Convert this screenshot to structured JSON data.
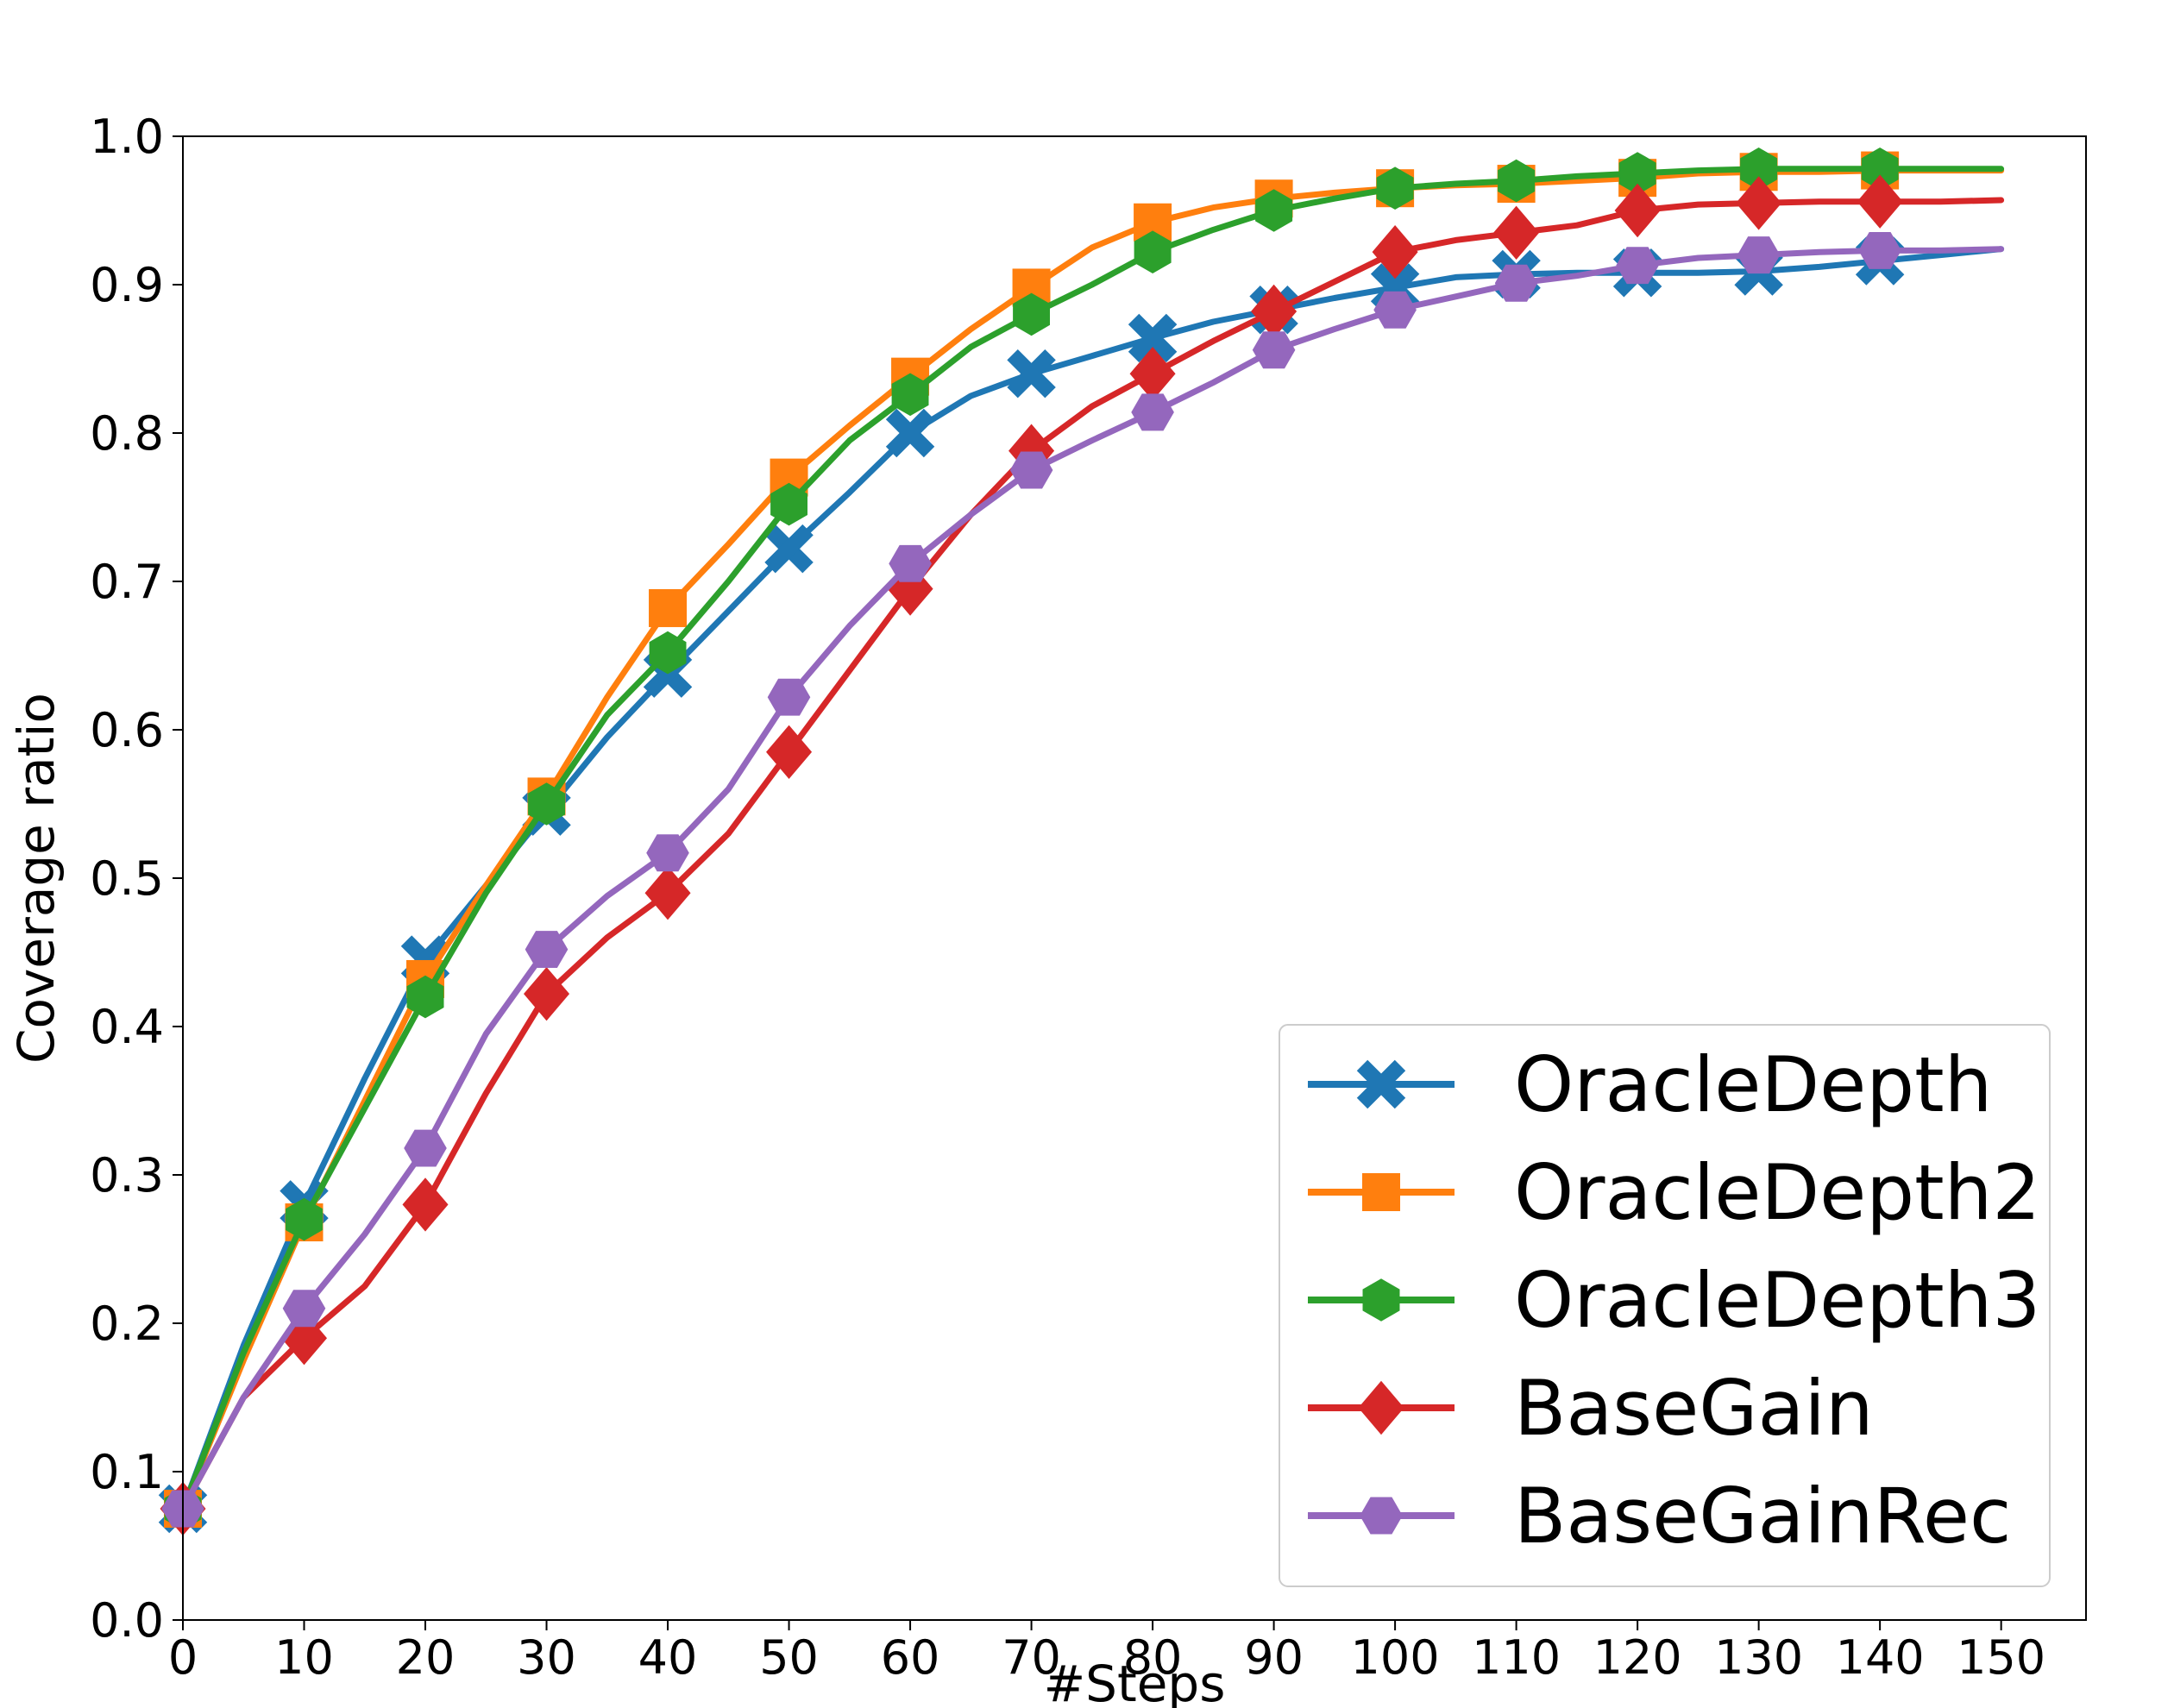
{
  "chart_data": {
    "type": "line",
    "title": "",
    "xlabel": "#Steps",
    "ylabel": "Coverage ratio",
    "xlim": [
      0,
      157
    ],
    "ylim": [
      0,
      1.0
    ],
    "xticks": [
      "0",
      "10",
      "20",
      "30",
      "40",
      "50",
      "60",
      "70",
      "80",
      "90",
      "100",
      "110",
      "120",
      "130",
      "140",
      "150"
    ],
    "yticks": [
      "0.0",
      "0.1",
      "0.2",
      "0.3",
      "0.4",
      "0.5",
      "0.6",
      "0.7",
      "0.8",
      "0.9",
      "1.0"
    ],
    "grid": false,
    "legend_position": "lower-right",
    "x": [
      0,
      5,
      10,
      15,
      20,
      25,
      30,
      35,
      40,
      45,
      50,
      55,
      60,
      65,
      70,
      75,
      80,
      85,
      90,
      95,
      100,
      105,
      110,
      115,
      120,
      125,
      130,
      135,
      140,
      145,
      150
    ],
    "marker_x": [
      0,
      10,
      20,
      30,
      40,
      50,
      60,
      70,
      80,
      90,
      100,
      110,
      120,
      130,
      140
    ],
    "series": [
      {
        "name": "OracleDepth",
        "color": "#1f77b4",
        "marker": "x",
        "values": [
          0.075,
          0.185,
          0.28,
          0.365,
          0.445,
          0.495,
          0.545,
          0.595,
          0.638,
          0.68,
          0.722,
          0.76,
          0.8,
          0.825,
          0.84,
          0.852,
          0.864,
          0.875,
          0.883,
          0.891,
          0.898,
          0.905,
          0.907,
          0.908,
          0.908,
          0.908,
          0.909,
          0.912,
          0.916,
          0.92,
          0.924
        ]
      },
      {
        "name": "OracleDepth2",
        "color": "#ff7f0e",
        "marker": "square",
        "values": [
          0.075,
          0.175,
          0.268,
          0.35,
          0.432,
          0.495,
          0.555,
          0.622,
          0.682,
          0.725,
          0.77,
          0.805,
          0.838,
          0.87,
          0.898,
          0.925,
          0.942,
          0.952,
          0.958,
          0.962,
          0.965,
          0.967,
          0.968,
          0.97,
          0.972,
          0.975,
          0.976,
          0.976,
          0.977,
          0.977,
          0.977
        ]
      },
      {
        "name": "OracleDepth3",
        "color": "#2ca02c",
        "marker": "hexagon",
        "values": [
          0.075,
          0.18,
          0.27,
          0.345,
          0.42,
          0.49,
          0.55,
          0.61,
          0.652,
          0.7,
          0.752,
          0.795,
          0.826,
          0.858,
          0.88,
          0.9,
          0.922,
          0.937,
          0.95,
          0.958,
          0.965,
          0.968,
          0.97,
          0.973,
          0.975,
          0.977,
          0.978,
          0.978,
          0.978,
          0.978,
          0.978
        ]
      },
      {
        "name": "BaseGain",
        "color": "#d62728",
        "marker": "diamond",
        "values": [
          0.075,
          0.15,
          0.19,
          0.225,
          0.28,
          0.355,
          0.422,
          0.46,
          0.49,
          0.53,
          0.585,
          0.64,
          0.695,
          0.745,
          0.788,
          0.818,
          0.84,
          0.862,
          0.882,
          0.902,
          0.922,
          0.93,
          0.935,
          0.94,
          0.95,
          0.954,
          0.955,
          0.956,
          0.956,
          0.956,
          0.957
        ]
      },
      {
        "name": "BaseGainRec",
        "color": "#9467bd",
        "marker": "pentagon",
        "values": [
          0.075,
          0.15,
          0.21,
          0.26,
          0.318,
          0.395,
          0.452,
          0.488,
          0.517,
          0.56,
          0.622,
          0.67,
          0.712,
          0.745,
          0.775,
          0.795,
          0.814,
          0.834,
          0.856,
          0.87,
          0.883,
          0.892,
          0.901,
          0.906,
          0.913,
          0.918,
          0.92,
          0.922,
          0.923,
          0.923,
          0.924
        ]
      }
    ]
  }
}
